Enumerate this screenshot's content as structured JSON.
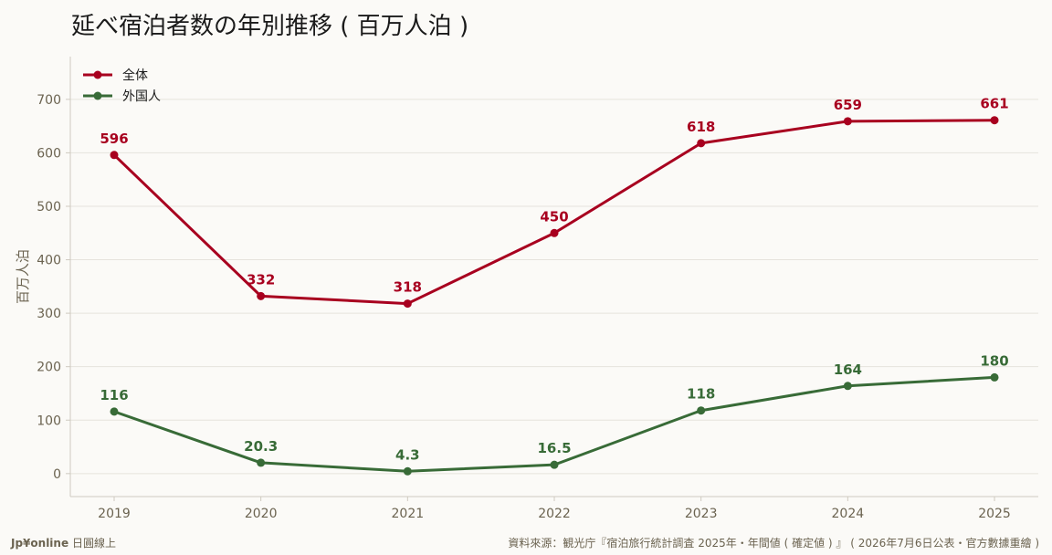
{
  "chart_data": {
    "type": "line",
    "title": "延べ宿泊者数の年別推移 ( 百万人泊 )",
    "ylabel": "百万人泊",
    "xlabel": "",
    "x": [
      "2019",
      "2020",
      "2021",
      "2022",
      "2023",
      "2024",
      "2025"
    ],
    "ylim": [
      -43,
      780
    ],
    "yticks": [
      0,
      100,
      200,
      300,
      400,
      500,
      600,
      700
    ],
    "grid": true,
    "legend": "top-left",
    "series": [
      {
        "name": "全体",
        "color": "#a8001f",
        "values": [
          596,
          332,
          318,
          450,
          618,
          659,
          661
        ],
        "labels": [
          "596",
          "332",
          "318",
          "450",
          "618",
          "659",
          "661"
        ]
      },
      {
        "name": "外国人",
        "color": "#386b37",
        "values": [
          116,
          20.3,
          4.3,
          16.5,
          118,
          164,
          180
        ],
        "labels": [
          "116",
          "20.3",
          "4.3",
          "16.5",
          "118",
          "164",
          "180"
        ]
      }
    ]
  },
  "footer": {
    "brand": "Jp¥online",
    "brand_sub": "日圓線上",
    "source": "資料來源：観光庁『宿泊旅行統計調査 2025年・年間値 ( 確定値 ) 』 ( 2026年7月6日公表・官方數據重繪 )"
  }
}
